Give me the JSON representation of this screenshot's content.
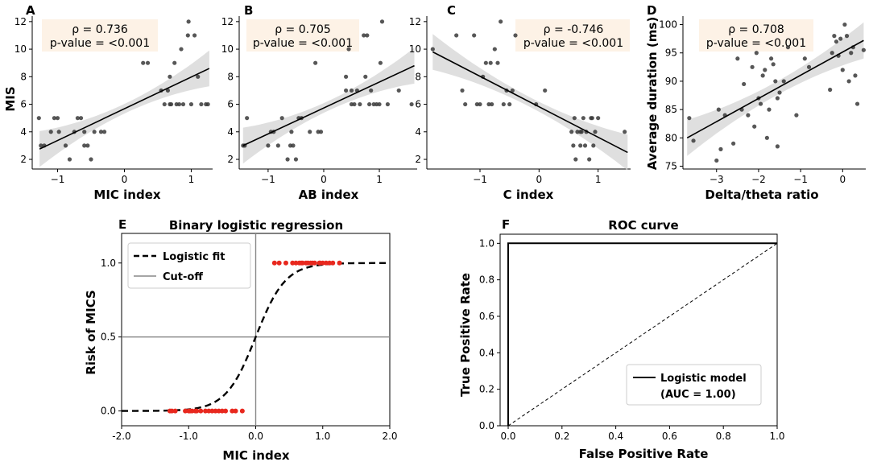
{
  "chart_data": [
    {
      "panel": "A",
      "type": "scatter",
      "xlabel": "MIC index",
      "ylabel": "MIS",
      "xlim": [
        -1.38,
        1.32
      ],
      "ylim": [
        1.3,
        12.4
      ],
      "xticks": [
        -1,
        0,
        1
      ],
      "xtick_labels": [
        "−1",
        "0",
        "1"
      ],
      "yticks": [
        2,
        4,
        6,
        8,
        10,
        12
      ],
      "ytick_labels": [
        "2",
        "4",
        "6",
        "8",
        "10",
        "12"
      ],
      "stats": {
        "rho": "ρ = 0.736",
        "p": "p-value = <0.001"
      },
      "fit": {
        "x": [
          -1.27,
          1.27
        ],
        "y": [
          2.75,
          8.6
        ],
        "band": [
          0.35,
          1.3
        ]
      },
      "points": [
        [
          -1.28,
          5
        ],
        [
          -1.25,
          3
        ],
        [
          -1.2,
          3
        ],
        [
          -1.05,
          5
        ],
        [
          -1.1,
          4
        ],
        [
          -1.0,
          5
        ],
        [
          -0.98,
          4
        ],
        [
          -0.88,
          3
        ],
        [
          -0.82,
          2
        ],
        [
          -0.75,
          4
        ],
        [
          -0.7,
          5
        ],
        [
          -0.6,
          4
        ],
        [
          -0.65,
          5
        ],
        [
          -0.55,
          3
        ],
        [
          -0.5,
          2
        ],
        [
          -0.45,
          4
        ],
        [
          -0.35,
          4
        ],
        [
          -0.3,
          4
        ],
        [
          -0.6,
          3
        ],
        [
          0.28,
          9
        ],
        [
          0.35,
          9
        ],
        [
          0.55,
          7
        ],
        [
          0.6,
          6
        ],
        [
          0.65,
          7
        ],
        [
          0.68,
          8
        ],
        [
          0.7,
          6
        ],
        [
          0.75,
          9
        ],
        [
          0.78,
          6
        ],
        [
          0.82,
          6
        ],
        [
          0.88,
          6
        ],
        [
          0.95,
          11
        ],
        [
          0.96,
          12
        ],
        [
          1.0,
          6
        ],
        [
          1.05,
          11
        ],
        [
          1.1,
          8
        ],
        [
          1.15,
          6
        ],
        [
          1.22,
          6
        ],
        [
          1.25,
          6
        ],
        [
          0.85,
          10
        ],
        [
          0.68,
          6
        ]
      ]
    },
    {
      "panel": "B",
      "type": "scatter",
      "xlabel": "AB index",
      "ylabel": "",
      "xlim": [
        -1.52,
        1.68
      ],
      "ylim": [
        1.3,
        12.4
      ],
      "xticks": [
        -1,
        0,
        1
      ],
      "xtick_labels": [
        "−1",
        "0",
        "1"
      ],
      "yticks": [
        2,
        4,
        6,
        8,
        10,
        12
      ],
      "ytick_labels": [
        "2",
        "4",
        "6",
        "8",
        "10",
        "12"
      ],
      "stats": {
        "rho": "ρ = 0.705",
        "p": "p-value = <0.001"
      },
      "fit": {
        "x": [
          -1.45,
          1.63
        ],
        "y": [
          3.0,
          8.8
        ],
        "band": [
          0.35,
          1.3
        ]
      },
      "points": [
        [
          -1.45,
          3
        ],
        [
          -1.42,
          3
        ],
        [
          -1.38,
          5
        ],
        [
          -1.0,
          3
        ],
        [
          -0.95,
          4
        ],
        [
          -0.9,
          4
        ],
        [
          -0.82,
          3
        ],
        [
          -0.75,
          5
        ],
        [
          -0.65,
          2
        ],
        [
          -0.6,
          3
        ],
        [
          -0.58,
          4
        ],
        [
          -0.55,
          3
        ],
        [
          -0.5,
          2
        ],
        [
          -0.45,
          5
        ],
        [
          -0.4,
          5
        ],
        [
          -0.25,
          4
        ],
        [
          -0.15,
          9
        ],
        [
          -0.1,
          4
        ],
        [
          -0.05,
          4
        ],
        [
          0.4,
          8
        ],
        [
          0.45,
          10
        ],
        [
          0.5,
          7
        ],
        [
          0.55,
          6
        ],
        [
          0.6,
          7
        ],
        [
          0.65,
          6
        ],
        [
          0.72,
          11
        ],
        [
          0.75,
          8
        ],
        [
          0.78,
          11
        ],
        [
          0.82,
          6
        ],
        [
          0.85,
          7
        ],
        [
          0.9,
          6
        ],
        [
          0.95,
          6
        ],
        [
          1.0,
          6
        ],
        [
          1.02,
          9
        ],
        [
          1.05,
          12
        ],
        [
          1.15,
          6
        ],
        [
          1.35,
          7
        ],
        [
          1.58,
          6
        ],
        [
          0.5,
          6
        ],
        [
          0.4,
          7
        ]
      ]
    },
    {
      "panel": "C",
      "type": "scatter",
      "xlabel": "C index",
      "ylabel": "",
      "xlim": [
        -1.9,
        1.55
      ],
      "ylim": [
        1.3,
        12.4
      ],
      "xticks": [
        -1,
        0,
        1
      ],
      "xtick_labels": [
        "−1",
        "0",
        "1"
      ],
      "yticks": [
        2,
        4,
        6,
        8,
        10,
        12
      ],
      "ytick_labels": [
        "2",
        "4",
        "6",
        "8",
        "10",
        "12"
      ],
      "stats": {
        "rho": "ρ = -0.746",
        "p": "p-value = <0.001"
      },
      "fit": {
        "x": [
          -1.8,
          1.5
        ],
        "y": [
          9.8,
          2.5
        ],
        "band": [
          0.35,
          1.3
        ]
      },
      "points": [
        [
          -1.8,
          10
        ],
        [
          -1.4,
          11
        ],
        [
          -1.3,
          7
        ],
        [
          -1.25,
          6
        ],
        [
          -1.1,
          11
        ],
        [
          -1.05,
          6
        ],
        [
          -1.0,
          6
        ],
        [
          -0.95,
          8
        ],
        [
          -0.9,
          9
        ],
        [
          -0.85,
          6
        ],
        [
          -0.82,
          9
        ],
        [
          -0.8,
          6
        ],
        [
          -0.75,
          10
        ],
        [
          -0.7,
          9
        ],
        [
          -0.65,
          12
        ],
        [
          -0.6,
          6
        ],
        [
          -0.55,
          7
        ],
        [
          -0.5,
          6
        ],
        [
          -0.45,
          7
        ],
        [
          -0.4,
          11
        ],
        [
          -0.05,
          6
        ],
        [
          0.1,
          7
        ],
        [
          0.55,
          4
        ],
        [
          0.58,
          3
        ],
        [
          0.6,
          5
        ],
        [
          0.62,
          2
        ],
        [
          0.65,
          4
        ],
        [
          0.7,
          3
        ],
        [
          0.72,
          4
        ],
        [
          0.75,
          5
        ],
        [
          0.78,
          3
        ],
        [
          0.8,
          4
        ],
        [
          0.85,
          2
        ],
        [
          0.88,
          5
        ],
        [
          0.9,
          5
        ],
        [
          0.92,
          3
        ],
        [
          0.95,
          4
        ],
        [
          1.0,
          5
        ],
        [
          1.45,
          4
        ],
        [
          0.7,
          4
        ]
      ]
    },
    {
      "panel": "D",
      "type": "scatter",
      "xlabel": "Delta/theta ratio",
      "ylabel": "Average duration (ms)",
      "xlim": [
        -3.8,
        0.55
      ],
      "ylim": [
        74.5,
        101.5
      ],
      "xticks": [
        -3,
        -2,
        -1,
        0
      ],
      "xtick_labels": [
        "−3",
        "−2",
        "−1",
        "0"
      ],
      "yticks": [
        75,
        80,
        85,
        90,
        95,
        100
      ],
      "ytick_labels": [
        "75",
        "80",
        "85",
        "90",
        "95",
        "100"
      ],
      "stats": {
        "rho": "ρ = 0.708",
        "p": "p-value = <0.001"
      },
      "fit": {
        "x": [
          -3.7,
          0.5
        ],
        "y": [
          80,
          97.2
        ],
        "band": [
          1.2,
          3.2
        ]
      },
      "points": [
        [
          -3.65,
          83.5
        ],
        [
          -3.55,
          79.5
        ],
        [
          -3.0,
          76
        ],
        [
          -2.95,
          85
        ],
        [
          -2.9,
          78
        ],
        [
          -2.8,
          84
        ],
        [
          -2.6,
          79
        ],
        [
          -2.5,
          94
        ],
        [
          -2.4,
          85
        ],
        [
          -2.35,
          89.5
        ],
        [
          -2.25,
          84
        ],
        [
          -2.15,
          92.5
        ],
        [
          -2.1,
          82
        ],
        [
          -2.05,
          95
        ],
        [
          -2.0,
          87
        ],
        [
          -1.95,
          86
        ],
        [
          -1.9,
          91
        ],
        [
          -1.85,
          92
        ],
        [
          -1.8,
          80
        ],
        [
          -1.75,
          85
        ],
        [
          -1.7,
          94
        ],
        [
          -1.65,
          93
        ],
        [
          -1.6,
          90
        ],
        [
          -1.55,
          78.5
        ],
        [
          -1.55,
          87
        ],
        [
          -1.5,
          88
        ],
        [
          -1.4,
          90
        ],
        [
          -1.3,
          96
        ],
        [
          -1.1,
          84
        ],
        [
          -0.9,
          94
        ],
        [
          -0.8,
          92.5
        ],
        [
          -0.3,
          88.5
        ],
        [
          -0.25,
          95
        ],
        [
          -0.2,
          98
        ],
        [
          -0.15,
          97
        ],
        [
          -0.1,
          94.5
        ],
        [
          0.0,
          92
        ],
        [
          0.05,
          100
        ],
        [
          0.1,
          98
        ],
        [
          0.15,
          90
        ],
        [
          0.2,
          95
        ],
        [
          0.3,
          91
        ],
        [
          0.35,
          86
        ],
        [
          0.5,
          95.5
        ],
        [
          0.25,
          96
        ],
        [
          -0.05,
          97.5
        ]
      ]
    },
    {
      "panel": "E",
      "type": "line",
      "title": "Binary logistic regression",
      "xlabel": "MIC index",
      "ylabel": "Risk of MICS",
      "xlim": [
        -2.0,
        2.0
      ],
      "ylim": [
        -0.1,
        1.2
      ],
      "xticks": [
        -2.0,
        -1.0,
        0.0,
        1.0,
        2.0
      ],
      "xtick_labels": [
        "-2.0",
        "-1.0",
        "0.0",
        "1.0",
        "2.0"
      ],
      "yticks": [
        0.0,
        0.5,
        1.0
      ],
      "ytick_labels": [
        "0.0",
        "0.5",
        "1.0"
      ],
      "cutoff": {
        "x": 0.0,
        "y": 0.5
      },
      "logistic": {
        "k": 4.5,
        "x0": 0.0
      },
      "series": [
        {
          "name": "Logistic fit",
          "style": "dashed"
        },
        {
          "name": "Cut-off",
          "style": "solid-gray"
        }
      ],
      "events": {
        "zeros": [
          -1.28,
          -1.25,
          -1.2,
          -1.05,
          -1.0,
          -0.98,
          -0.95,
          -0.9,
          -0.88,
          -0.82,
          -0.75,
          -0.7,
          -0.65,
          -0.6,
          -0.55,
          -0.5,
          -0.45,
          -0.35,
          -0.3,
          -0.2
        ],
        "ones": [
          0.28,
          0.35,
          0.45,
          0.55,
          0.6,
          0.65,
          0.68,
          0.7,
          0.75,
          0.78,
          0.82,
          0.85,
          0.88,
          0.95,
          0.96,
          1.0,
          1.05,
          1.1,
          1.15,
          1.25
        ]
      },
      "legend_position": "top-left"
    },
    {
      "panel": "F",
      "type": "line",
      "title": "ROC curve",
      "xlabel": "False Positive Rate",
      "ylabel": "True Positive Rate",
      "xlim": [
        -0.03,
        1.0
      ],
      "ylim": [
        0.0,
        1.05
      ],
      "xticks": [
        0.0,
        0.2,
        0.4,
        0.6,
        0.8,
        1.0
      ],
      "xtick_labels": [
        "0.0",
        "0.2",
        "0.4",
        "0.6",
        "0.8",
        "1.0"
      ],
      "yticks": [
        0.0,
        0.2,
        0.4,
        0.6,
        0.8,
        1.0
      ],
      "ytick_labels": [
        "0.0",
        "0.2",
        "0.4",
        "0.6",
        "0.8",
        "1.0"
      ],
      "roc": {
        "x": [
          0.0,
          0.0,
          1.0
        ],
        "y": [
          0.0,
          1.0,
          1.0
        ]
      },
      "diagonal": {
        "x": [
          0.0,
          1.0
        ],
        "y": [
          0.0,
          1.0
        ]
      },
      "series": [
        {
          "name": "Logistic model",
          "auc_label": "(AUC = 1.00)"
        }
      ],
      "legend_position": "lower-right"
    }
  ]
}
